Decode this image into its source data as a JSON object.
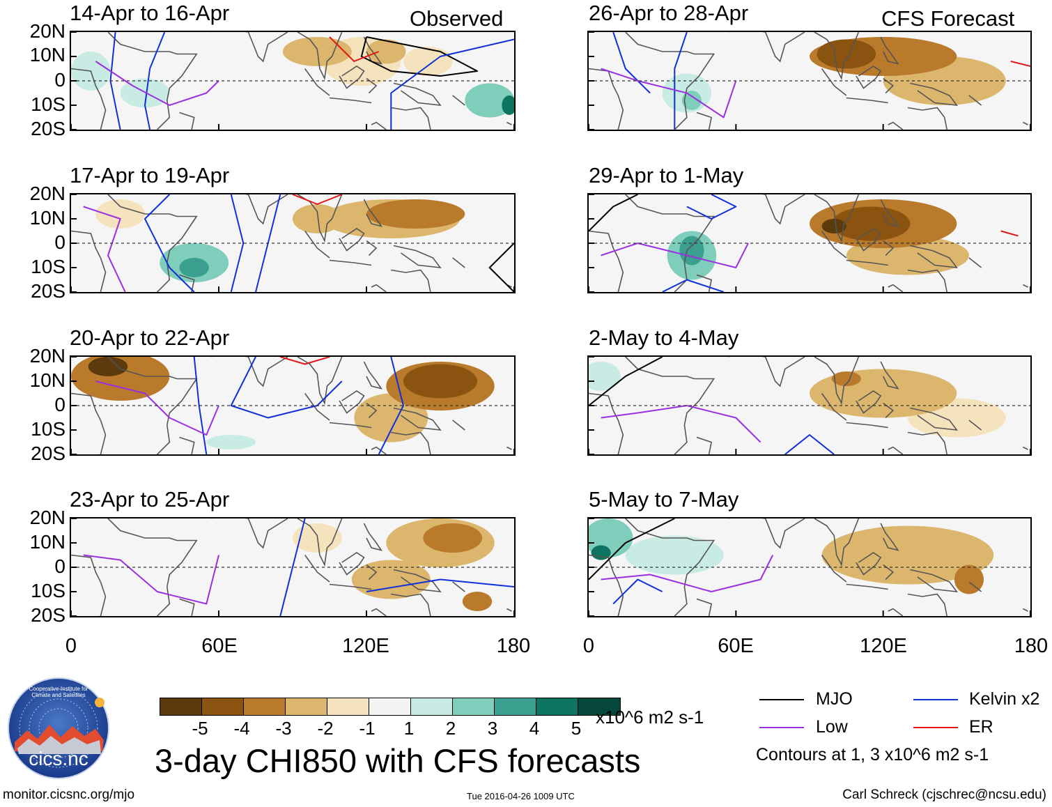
{
  "figure": {
    "title": "3-day CHI850 with CFS forecasts",
    "left_column_label": "Observed",
    "right_column_label": "CFS Forecast",
    "units_label": "x10^6 m2 s-1",
    "contour_note": "Contours at 1, 3 x10^6 m2 s-1",
    "footer_left": "monitor.cicsnc.org/mjo",
    "footer_center": "Tue 2016-04-26 1009 UTC",
    "footer_right": "Carl Schreck (cjschrec@ncsu.edu)",
    "logo_text": "cics.nc",
    "logo_ring_text": "Cooperative Institute for Climate and Satellites"
  },
  "panels": [
    {
      "id": "p1",
      "title": "14-Apr to 16-Apr"
    },
    {
      "id": "p2",
      "title": "17-Apr to 19-Apr"
    },
    {
      "id": "p3",
      "title": "20-Apr to 22-Apr"
    },
    {
      "id": "p4",
      "title": "23-Apr to 25-Apr"
    },
    {
      "id": "p5",
      "title": "26-Apr to 28-Apr"
    },
    {
      "id": "p6",
      "title": "29-Apr to 1-May"
    },
    {
      "id": "p7",
      "title": "2-May to 4-May"
    },
    {
      "id": "p8",
      "title": "5-May to 7-May"
    }
  ],
  "y_ticks": [
    "20N",
    "10N",
    "0",
    "10S",
    "20S"
  ],
  "x_ticks": [
    "0",
    "60E",
    "120E",
    "180"
  ],
  "colorbar": {
    "colors": [
      "#5c3a0c",
      "#8b5310",
      "#b97a2c",
      "#dcb66d",
      "#f5e3bd",
      "#f4f4f4",
      "#c8ebe3",
      "#7fcdbb",
      "#3a9f8e",
      "#0e7462",
      "#05473a"
    ],
    "ticks": [
      "-5",
      "-4",
      "-3",
      "-2",
      "-1",
      "1",
      "2",
      "3",
      "4",
      "5"
    ]
  },
  "legend": [
    {
      "label": "MJO",
      "color": "#000000"
    },
    {
      "label": "Kelvin x2",
      "color": "#1030d8"
    },
    {
      "label": "Low",
      "color": "#9b30e0"
    },
    {
      "label": "ER",
      "color": "#e01818"
    }
  ],
  "map_data": {
    "lon_range": [
      0,
      180
    ],
    "lat_range": [
      -20,
      20
    ],
    "blobs": {
      "p1": [
        [
          100,
          12,
          14,
          6,
          -2
        ],
        [
          118,
          8,
          16,
          10,
          -1
        ],
        [
          128,
          12,
          8,
          5,
          -2
        ],
        [
          145,
          8,
          10,
          6,
          -1
        ],
        [
          170,
          -8,
          10,
          7,
          2
        ],
        [
          178,
          -10,
          3,
          4,
          4
        ],
        [
          8,
          4,
          8,
          8,
          1
        ],
        [
          30,
          -5,
          10,
          6,
          1
        ]
      ],
      "p2": [
        [
          130,
          10,
          28,
          8,
          -2
        ],
        [
          140,
          12,
          20,
          6,
          -3
        ],
        [
          100,
          10,
          10,
          6,
          -2
        ],
        [
          50,
          -8,
          14,
          8,
          2
        ],
        [
          50,
          -10,
          6,
          4,
          3
        ],
        [
          20,
          12,
          10,
          6,
          -1
        ]
      ],
      "p3": [
        [
          20,
          12,
          20,
          10,
          -3
        ],
        [
          15,
          16,
          8,
          4,
          -5
        ],
        [
          150,
          8,
          22,
          10,
          -3
        ],
        [
          150,
          10,
          15,
          7,
          -4
        ],
        [
          130,
          -5,
          15,
          10,
          -2
        ],
        [
          65,
          -15,
          10,
          3,
          1
        ]
      ],
      "p4": [
        [
          150,
          10,
          22,
          10,
          -2
        ],
        [
          155,
          12,
          12,
          6,
          -3
        ],
        [
          130,
          -5,
          16,
          8,
          -2
        ],
        [
          165,
          -14,
          6,
          4,
          -3
        ],
        [
          100,
          12,
          10,
          6,
          -1
        ]
      ],
      "p5": [
        [
          120,
          10,
          30,
          8,
          -3
        ],
        [
          105,
          11,
          12,
          6,
          -4
        ],
        [
          145,
          0,
          25,
          10,
          -2
        ],
        [
          40,
          -5,
          10,
          8,
          1
        ],
        [
          42,
          -8,
          4,
          4,
          2
        ]
      ],
      "p6": [
        [
          120,
          8,
          30,
          10,
          -3
        ],
        [
          115,
          8,
          16,
          7,
          -4
        ],
        [
          100,
          7,
          5,
          3,
          -5
        ],
        [
          130,
          -5,
          25,
          8,
          -2
        ],
        [
          42,
          -5,
          10,
          10,
          2
        ],
        [
          42,
          -3,
          5,
          6,
          3
        ]
      ],
      "p7": [
        [
          120,
          5,
          30,
          10,
          -2
        ],
        [
          105,
          11,
          6,
          3,
          -3
        ],
        [
          150,
          -5,
          20,
          8,
          -1
        ],
        [
          5,
          12,
          8,
          6,
          1
        ]
      ],
      "p8": [
        [
          130,
          5,
          35,
          12,
          -2
        ],
        [
          155,
          -5,
          6,
          6,
          -3
        ],
        [
          8,
          12,
          10,
          8,
          2
        ],
        [
          5,
          6,
          4,
          3,
          4
        ],
        [
          35,
          5,
          20,
          8,
          1
        ]
      ]
    },
    "contours": {
      "p1": [
        [
          "mjo",
          [
            [
              120,
              18
            ],
            [
              150,
              12
            ],
            [
              165,
              4
            ],
            [
              150,
              2
            ],
            [
              130,
              4
            ],
            [
              118,
              10
            ],
            [
              120,
              18
            ]
          ]
        ],
        [
          "kelvin",
          [
            [
              38,
              20
            ],
            [
              32,
              5
            ],
            [
              30,
              -10
            ],
            [
              32,
              -20
            ]
          ]
        ],
        [
          "kelvin",
          [
            [
              18,
              20
            ],
            [
              16,
              0
            ],
            [
              20,
              -20
            ]
          ]
        ],
        [
          "low",
          [
            [
              10,
              8
            ],
            [
              25,
              -2
            ],
            [
              40,
              -10
            ],
            [
              55,
              -5
            ],
            [
              60,
              0
            ]
          ]
        ],
        [
          "er",
          [
            [
              105,
              18
            ],
            [
              115,
              8
            ],
            [
              125,
              12
            ]
          ]
        ],
        [
          "kelvin",
          [
            [
              180,
              17
            ],
            [
              150,
              10
            ],
            [
              130,
              -5
            ],
            [
              130,
              -20
            ]
          ]
        ]
      ],
      "p2": [
        [
          "kelvin",
          [
            [
              40,
              20
            ],
            [
              30,
              10
            ],
            [
              40,
              -10
            ],
            [
              50,
              -20
            ]
          ]
        ],
        [
          "kelvin",
          [
            [
              65,
              20
            ],
            [
              70,
              0
            ],
            [
              65,
              -20
            ]
          ]
        ],
        [
          "kelvin",
          [
            [
              85,
              20
            ],
            [
              80,
              0
            ],
            [
              75,
              -20
            ]
          ]
        ],
        [
          "low",
          [
            [
              5,
              15
            ],
            [
              20,
              10
            ],
            [
              15,
              -5
            ],
            [
              22,
              -20
            ]
          ]
        ],
        [
          "er",
          [
            [
              90,
              20
            ],
            [
              100,
              16
            ],
            [
              110,
              20
            ]
          ]
        ],
        [
          "mjo",
          [
            [
              180,
              0
            ],
            [
              170,
              -10
            ],
            [
              180,
              -20
            ]
          ]
        ]
      ],
      "p3": [
        [
          "kelvin",
          [
            [
              50,
              20
            ],
            [
              52,
              0
            ],
            [
              55,
              -20
            ]
          ]
        ],
        [
          "kelvin",
          [
            [
              75,
              20
            ],
            [
              65,
              0
            ],
            [
              80,
              -5
            ],
            [
              100,
              0
            ],
            [
              110,
              10
            ]
          ]
        ],
        [
          "kelvin",
          [
            [
              130,
              20
            ],
            [
              135,
              0
            ],
            [
              130,
              -10
            ],
            [
              125,
              -20
            ]
          ]
        ],
        [
          "low",
          [
            [
              10,
              10
            ],
            [
              30,
              5
            ],
            [
              40,
              -5
            ],
            [
              55,
              -12
            ],
            [
              60,
              0
            ]
          ]
        ],
        [
          "er",
          [
            [
              85,
              20
            ],
            [
              95,
              17
            ],
            [
              105,
              20
            ]
          ]
        ]
      ],
      "p4": [
        [
          "kelvin",
          [
            [
              95,
              20
            ],
            [
              90,
              0
            ],
            [
              85,
              -20
            ]
          ]
        ],
        [
          "kelvin",
          [
            [
              120,
              -10
            ],
            [
              150,
              -5
            ],
            [
              180,
              -8
            ]
          ]
        ],
        [
          "low",
          [
            [
              5,
              5
            ],
            [
              20,
              3
            ],
            [
              35,
              -10
            ],
            [
              55,
              -15
            ],
            [
              60,
              5
            ]
          ]
        ]
      ],
      "p5": [
        [
          "kelvin",
          [
            [
              10,
              20
            ],
            [
              15,
              5
            ],
            [
              25,
              -5
            ]
          ]
        ],
        [
          "kelvin",
          [
            [
              40,
              20
            ],
            [
              35,
              5
            ],
            [
              35,
              -20
            ]
          ]
        ],
        [
          "low",
          [
            [
              5,
              5
            ],
            [
              20,
              0
            ],
            [
              40,
              -5
            ],
            [
              55,
              -15
            ],
            [
              60,
              0
            ]
          ]
        ],
        [
          "er",
          [
            [
              172,
              8
            ],
            [
              180,
              6
            ]
          ]
        ]
      ],
      "p6": [
        [
          "mjo",
          [
            [
              0,
              5
            ],
            [
              10,
              15
            ],
            [
              20,
              20
            ]
          ]
        ],
        [
          "kelvin",
          [
            [
              40,
              15
            ],
            [
              50,
              10
            ],
            [
              60,
              15
            ],
            [
              50,
              20
            ]
          ]
        ],
        [
          "kelvin",
          [
            [
              30,
              -20
            ],
            [
              40,
              -15
            ],
            [
              55,
              -20
            ]
          ]
        ],
        [
          "low",
          [
            [
              5,
              -5
            ],
            [
              20,
              0
            ],
            [
              40,
              -5
            ],
            [
              60,
              -10
            ],
            [
              65,
              0
            ]
          ]
        ],
        [
          "er",
          [
            [
              168,
              5
            ],
            [
              175,
              3
            ]
          ]
        ]
      ],
      "p7": [
        [
          "mjo",
          [
            [
              0,
              0
            ],
            [
              15,
              12
            ],
            [
              30,
              20
            ]
          ]
        ],
        [
          "kelvin",
          [
            [
              80,
              -20
            ],
            [
              90,
              -12
            ],
            [
              100,
              -20
            ]
          ]
        ],
        [
          "low",
          [
            [
              5,
              -5
            ],
            [
              20,
              -3
            ],
            [
              40,
              0
            ],
            [
              60,
              -5
            ],
            [
              70,
              -15
            ]
          ]
        ]
      ],
      "p8": [
        [
          "mjo",
          [
            [
              0,
              -5
            ],
            [
              15,
              10
            ],
            [
              35,
              20
            ]
          ]
        ],
        [
          "kelvin",
          [
            [
              10,
              -15
            ],
            [
              20,
              -5
            ],
            [
              30,
              -10
            ]
          ]
        ],
        [
          "low",
          [
            [
              5,
              -5
            ],
            [
              25,
              -3
            ],
            [
              50,
              -10
            ],
            [
              70,
              -5
            ],
            [
              75,
              5
            ]
          ]
        ]
      ]
    }
  }
}
